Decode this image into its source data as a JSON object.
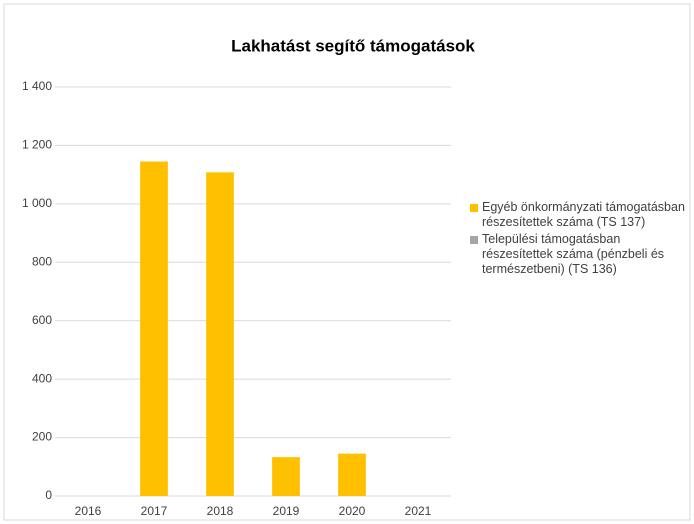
{
  "chart_data": {
    "type": "stacked_bar",
    "title": "Lakhatást segítő támogatások",
    "categories": [
      "2016",
      "2017",
      "2018",
      "2019",
      "2020",
      "2021"
    ],
    "series": [
      {
        "name": "Egyéb önkormányzati támogatásban részesítettek száma (TS 137)",
        "color": "#ffc000",
        "values": [
          0,
          1145,
          1108,
          133,
          145,
          0
        ]
      },
      {
        "name": "Települési támogatásban részesítettek száma (pénzbeli és természetbeni) (TS 136)",
        "color": "#a5a5a5",
        "values": [
          0,
          0,
          0,
          0,
          0,
          0
        ]
      }
    ],
    "ylim": [
      0,
      1400
    ],
    "yticks": [
      0,
      200,
      400,
      600,
      800,
      {
        "value": 1000,
        "label": "1 000"
      },
      {
        "value": 1200,
        "label": "1 200"
      },
      {
        "value": 1400,
        "label": "1 400"
      }
    ],
    "grid": true,
    "legend": "right"
  }
}
